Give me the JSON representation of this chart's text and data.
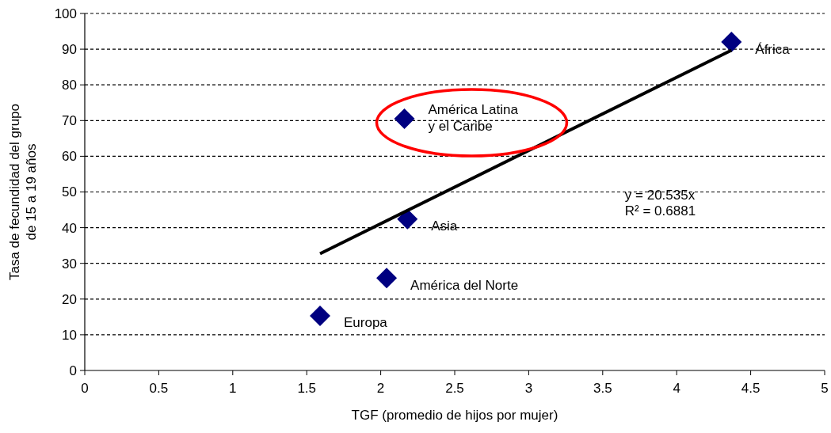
{
  "chart_data": {
    "type": "scatter",
    "xlabel": "TGF (promedio de hijos por mujer)",
    "ylabel": "Tasa de fecundidad del grupo\nde 15 a 19 años",
    "xlim": [
      0,
      5
    ],
    "xticks": [
      0,
      0.5,
      1,
      1.5,
      2,
      2.5,
      3,
      3.5,
      4,
      4.5,
      5
    ],
    "ylim": [
      0,
      100
    ],
    "yticks": [
      0,
      10,
      20,
      30,
      40,
      50,
      60,
      70,
      80,
      90,
      100
    ],
    "grid": "y",
    "series": [
      {
        "marker": "diamond",
        "color": "#000080",
        "x": [
          1.59,
          2.04,
          2.18,
          2.16,
          4.37
        ],
        "values": [
          15.3,
          25.9,
          42.4,
          70.5,
          92.0
        ]
      },
      {
        "type": "line",
        "color": "#000000",
        "x": [
          1.59,
          4.37
        ],
        "values": [
          32.7,
          89.7
        ]
      }
    ],
    "annotations": [
      {
        "text": "Europa",
        "x": 1.59,
        "y": 15.3
      },
      {
        "text": "América Latina\ny el Caribe",
        "x": 2.16,
        "y": 70.5
      },
      {
        "text": "Asia",
        "x": 2.18,
        "y": 42.4
      },
      {
        "text": "América del Norte",
        "x": 2.04,
        "y": 25.9
      },
      {
        "text": "África",
        "x": 4.37,
        "y": 92.0
      },
      "y = 20.535x\nR² = 0.6881"
    ]
  }
}
